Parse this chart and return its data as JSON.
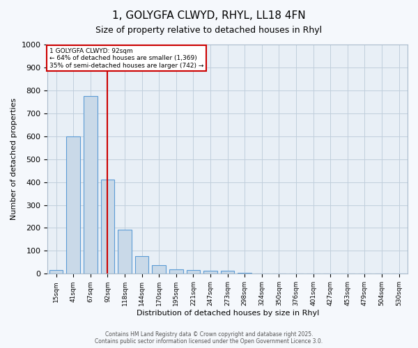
{
  "title_line1": "1, GOLYGFA CLWYD, RHYL, LL18 4FN",
  "title_line2": "Size of property relative to detached houses in Rhyl",
  "xlabel": "Distribution of detached houses by size in Rhyl",
  "ylabel": "Number of detached properties",
  "categories": [
    "15sqm",
    "41sqm",
    "67sqm",
    "92sqm",
    "118sqm",
    "144sqm",
    "170sqm",
    "195sqm",
    "221sqm",
    "247sqm",
    "273sqm",
    "298sqm",
    "324sqm",
    "350sqm",
    "376sqm",
    "401sqm",
    "427sqm",
    "453sqm",
    "479sqm",
    "504sqm",
    "530sqm"
  ],
  "values": [
    15,
    600,
    775,
    410,
    193,
    78,
    38,
    20,
    15,
    12,
    12,
    5,
    0,
    0,
    0,
    0,
    0,
    0,
    0,
    0,
    0
  ],
  "bar_color": "#c9d9e8",
  "bar_edge_color": "#5b9bd5",
  "red_line_index": 3,
  "ylim": [
    0,
    1000
  ],
  "yticks": [
    0,
    100,
    200,
    300,
    400,
    500,
    600,
    700,
    800,
    900,
    1000
  ],
  "annotation_title": "1 GOLYGFA CLWYD: 92sqm",
  "annotation_line2": "← 64% of detached houses are smaller (1,369)",
  "annotation_line3": "35% of semi-detached houses are larger (742) →",
  "annotation_box_color": "#ffffff",
  "annotation_box_edge": "#cc0000",
  "footer_line1": "Contains HM Land Registry data © Crown copyright and database right 2025.",
  "footer_line2": "Contains public sector information licensed under the Open Government Licence 3.0.",
  "plot_bg_color": "#e8eff6",
  "fig_bg_color": "#f5f8fc",
  "grid_color": "#c0cedc",
  "figsize": [
    6.0,
    5.0
  ],
  "dpi": 100
}
